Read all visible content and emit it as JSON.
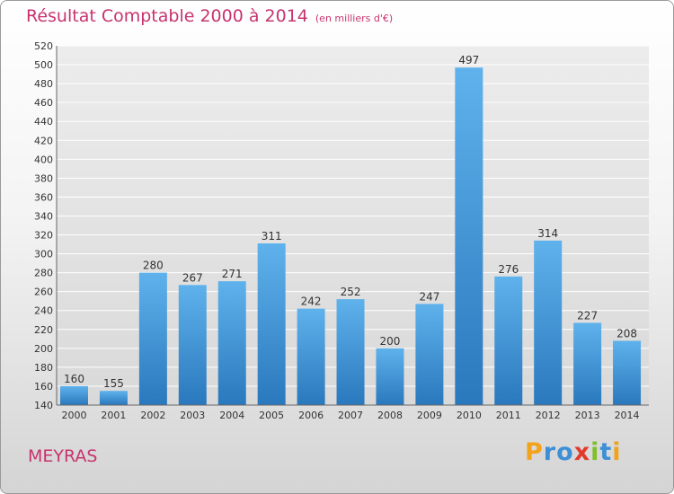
{
  "header": {
    "title": "Résultat Comptable 2000 à 2014",
    "subtitle": "(en milliers d'€)"
  },
  "footer": {
    "town": "MEYRAS",
    "logo_letters": [
      "P",
      "r",
      "o",
      "x",
      "i",
      "t",
      "i"
    ],
    "logo_colors": [
      "#f2a31b",
      "#3d8fd6",
      "#3d8fd6",
      "#e23b2e",
      "#7fbf2a",
      "#3d8fd6",
      "#f2a31b"
    ]
  },
  "colors": {
    "accent": "#c8336e",
    "bar_top": "#5fb2ec",
    "bar_bottom": "#2a78bd",
    "grid": "#ffffff"
  },
  "chart_data": {
    "type": "bar",
    "title": "Résultat Comptable 2000 à 2014",
    "subtitle": "(en milliers d'€)",
    "xlabel": "",
    "ylabel": "",
    "categories": [
      "2000",
      "2001",
      "2002",
      "2003",
      "2004",
      "2005",
      "2006",
      "2007",
      "2008",
      "2009",
      "2010",
      "2011",
      "2012",
      "2013",
      "2014"
    ],
    "values": [
      160,
      155,
      280,
      267,
      271,
      311,
      242,
      252,
      200,
      247,
      497,
      276,
      314,
      227,
      208
    ],
    "ylim": [
      140,
      520
    ],
    "ytick_step": 20,
    "grid": true
  }
}
